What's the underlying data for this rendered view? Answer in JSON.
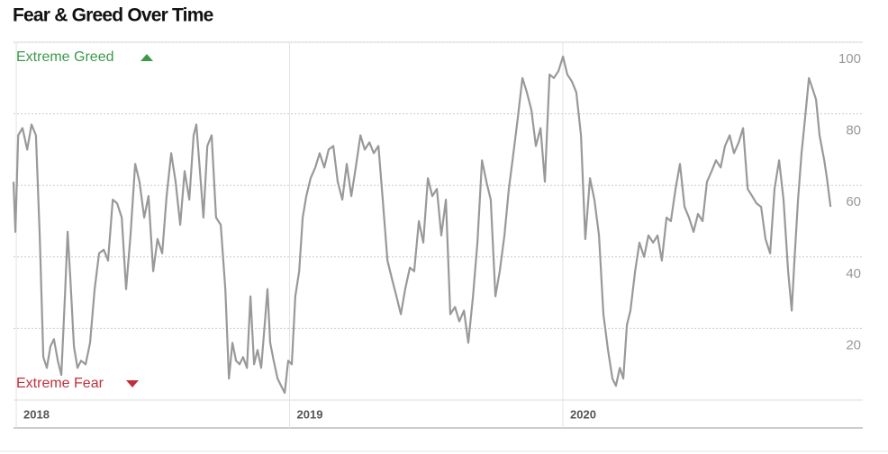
{
  "chart_data": {
    "type": "line",
    "title": "Fear & Greed Over Time",
    "annotations": [
      "Extreme Greed",
      "Extreme Fear"
    ],
    "x": [
      2017.99,
      2017.997,
      2018.007,
      2018.023,
      2018.04,
      2018.056,
      2018.072,
      2018.086,
      2018.099,
      2018.112,
      2018.125,
      2018.138,
      2018.152,
      2018.165,
      2018.178,
      2018.188,
      2018.198,
      2018.211,
      2018.224,
      2018.237,
      2018.254,
      2018.27,
      2018.287,
      2018.303,
      2018.32,
      2018.336,
      2018.353,
      2018.369,
      2018.386,
      2018.402,
      2018.418,
      2018.435,
      2018.451,
      2018.468,
      2018.484,
      2018.501,
      2018.517,
      2018.534,
      2018.55,
      2018.567,
      2018.583,
      2018.6,
      2018.616,
      2018.633,
      2018.649,
      2018.659,
      2018.672,
      2018.685,
      2018.699,
      2018.715,
      2018.731,
      2018.748,
      2018.765,
      2018.778,
      2018.791,
      2018.804,
      2018.817,
      2018.83,
      2018.844,
      2018.857,
      2018.87,
      2018.883,
      2018.896,
      2018.909,
      2018.919,
      2018.929,
      2018.942,
      2018.956,
      2018.969,
      2018.982,
      2018.995,
      2019.008,
      2019.021,
      2019.035,
      2019.048,
      2019.061,
      2019.077,
      2019.094,
      2019.11,
      2019.127,
      2019.143,
      2019.16,
      2019.176,
      2019.193,
      2019.209,
      2019.226,
      2019.242,
      2019.259,
      2019.275,
      2019.292,
      2019.308,
      2019.325,
      2019.341,
      2019.358,
      2019.374,
      2019.391,
      2019.407,
      2019.423,
      2019.44,
      2019.456,
      2019.473,
      2019.489,
      2019.506,
      2019.522,
      2019.539,
      2019.555,
      2019.572,
      2019.588,
      2019.605,
      2019.621,
      2019.638,
      2019.654,
      2019.671,
      2019.687,
      2019.704,
      2019.72,
      2019.736,
      2019.753,
      2019.769,
      2019.786,
      2019.802,
      2019.819,
      2019.835,
      2019.852,
      2019.868,
      2019.885,
      2019.901,
      2019.918,
      2019.934,
      2019.951,
      2019.967,
      2019.984,
      2020.0,
      2020.016,
      2020.033,
      2020.049,
      2020.066,
      2020.082,
      2020.099,
      2020.115,
      2020.132,
      2020.148,
      2020.165,
      2020.181,
      2020.194,
      2020.208,
      2020.221,
      2020.234,
      2020.247,
      2020.264,
      2020.28,
      2020.297,
      2020.313,
      2020.33,
      2020.346,
      2020.362,
      2020.379,
      2020.395,
      2020.412,
      2020.428,
      2020.445,
      2020.461,
      2020.478,
      2020.494,
      2020.511,
      2020.527,
      2020.544,
      2020.56,
      2020.577,
      2020.593,
      2020.61,
      2020.626,
      2020.643,
      2020.659,
      2020.676,
      2020.692,
      2020.708,
      2020.725,
      2020.741,
      2020.758,
      2020.774,
      2020.791,
      2020.807,
      2020.824,
      2020.837,
      2020.847,
      2020.86,
      2020.873,
      2020.886,
      2020.9,
      2020.913,
      2020.926,
      2020.939,
      2020.956,
      2020.966,
      2020.979
    ],
    "series": [
      {
        "color": "#999999",
        "values": [
          61,
          47,
          74,
          76,
          70,
          77,
          74,
          46,
          12,
          9,
          15,
          17,
          11,
          7,
          29,
          47,
          34,
          15,
          9,
          11,
          10,
          16,
          31,
          41,
          42,
          39,
          56,
          55,
          51,
          31,
          46,
          66,
          61,
          51,
          57,
          36,
          45,
          41,
          57,
          69,
          61,
          49,
          64,
          56,
          74,
          77,
          64,
          51,
          71,
          74,
          51,
          49,
          31,
          6,
          16,
          11,
          10,
          12,
          9,
          29,
          10,
          14,
          9,
          21,
          31,
          16,
          11,
          6,
          4,
          2,
          11,
          10,
          29,
          36,
          51,
          57,
          62,
          65,
          69,
          65,
          70,
          71,
          61,
          56,
          66,
          57,
          65,
          74,
          70,
          72,
          69,
          71,
          56,
          39,
          34,
          29,
          24,
          31,
          37,
          36,
          50,
          44,
          62,
          57,
          59,
          46,
          56,
          24,
          26,
          22,
          25,
          16,
          29,
          44,
          67,
          61,
          56,
          29,
          36,
          46,
          59,
          69,
          79,
          90,
          86,
          81,
          71,
          76,
          61,
          91,
          90,
          92,
          96,
          91,
          89,
          86,
          74,
          45,
          62,
          56,
          46,
          24,
          14,
          6,
          4,
          9,
          6,
          21,
          25,
          36,
          44,
          40,
          46,
          44,
          46,
          39,
          51,
          50,
          59,
          66,
          54,
          51,
          47,
          52,
          50,
          61,
          64,
          67,
          65,
          71,
          74,
          69,
          72,
          76,
          59,
          57,
          55,
          54,
          45,
          41,
          59,
          67,
          56,
          36,
          25,
          39,
          56,
          69,
          79,
          90,
          87,
          84,
          74,
          67,
          62,
          54
        ]
      }
    ],
    "xlim": [
      2017.99,
      2021.097
    ],
    "xticks": [
      2018,
      2019,
      2020
    ],
    "ylim": [
      0,
      100
    ],
    "yticks": [
      20,
      40,
      60,
      80,
      100
    ],
    "grid": true
  }
}
